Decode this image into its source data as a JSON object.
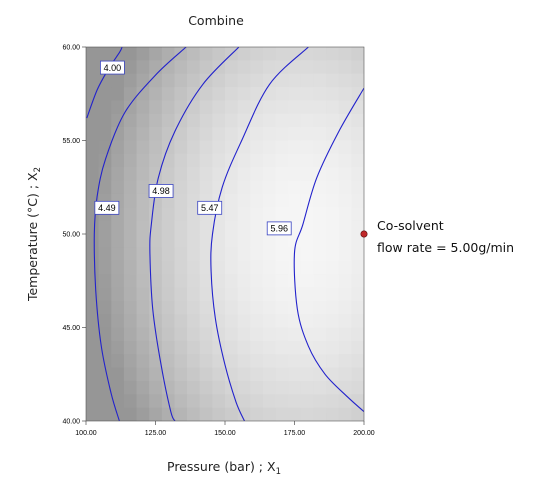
{
  "chart_data": {
    "type": "contour",
    "title": "Combine",
    "xlabel": "Pressure (bar) ; X",
    "xlabel_sub": "1",
    "ylabel": "Temperature (°C) ; X",
    "ylabel_sub": "2",
    "xlim": [
      100,
      200
    ],
    "ylim": [
      40,
      60
    ],
    "x_ticks": [
      "100.00",
      "125.00",
      "150.00",
      "175.00",
      "200.00"
    ],
    "y_ticks": [
      "40.00",
      "45.00",
      "50.00",
      "55.00",
      "60.00"
    ],
    "contours": [
      {
        "level": "4.00",
        "points": [
          [
            100.3,
            56.2
          ],
          [
            104,
            57.7
          ],
          [
            108,
            58.8
          ],
          [
            112,
            59.7
          ],
          [
            113,
            60.0
          ]
        ],
        "label_pos": [
          109.5,
          58.9
        ]
      },
      {
        "level": "4.49",
        "points": [
          [
            136,
            60.0
          ],
          [
            125,
            58.5
          ],
          [
            114,
            56.5
          ],
          [
            107,
            54.0
          ],
          [
            104,
            52.0
          ],
          [
            103,
            50.0
          ],
          [
            103.5,
            47.0
          ],
          [
            105.5,
            44.0
          ],
          [
            109,
            41.5
          ],
          [
            112,
            40.0
          ]
        ],
        "label_pos": [
          107.5,
          51.4
        ]
      },
      {
        "level": "4.98",
        "points": [
          [
            155,
            60.0
          ],
          [
            142,
            58.0
          ],
          [
            132,
            55.5
          ],
          [
            126,
            53.0
          ],
          [
            123.5,
            50.5
          ],
          [
            123,
            49.0
          ],
          [
            124,
            46.0
          ],
          [
            127,
            43.0
          ],
          [
            130.5,
            40.5
          ],
          [
            132,
            40.0
          ]
        ],
        "label_pos": [
          127,
          52.3
        ]
      },
      {
        "level": "5.47",
        "points": [
          [
            180,
            60.0
          ],
          [
            166,
            58.0
          ],
          [
            156,
            55.0
          ],
          [
            149,
            52.5
          ],
          [
            145.5,
            50.0
          ],
          [
            145,
            48.0
          ],
          [
            146.5,
            45.5
          ],
          [
            150,
            43.0
          ],
          [
            154,
            41.0
          ],
          [
            157,
            40.0
          ]
        ],
        "label_pos": [
          144.5,
          51.4
        ]
      },
      {
        "level": "5.96",
        "points": [
          [
            200,
            57.8
          ],
          [
            191,
            55.5
          ],
          [
            183,
            53.0
          ],
          [
            178,
            50.5
          ],
          [
            175,
            49.0
          ],
          [
            176,
            46.0
          ],
          [
            180,
            44.0
          ],
          [
            186,
            42.5
          ],
          [
            194,
            41.3
          ],
          [
            200,
            40.5
          ]
        ],
        "label_pos": [
          169.5,
          50.3
        ]
      }
    ],
    "design_point": {
      "x": 200,
      "y": 50
    },
    "annotation": [
      "Co-solvent",
      "flow rate = 5.00g/min"
    ],
    "colors": {
      "contour": "#2222cc",
      "design_point": "#c0282a",
      "label_border": "#3a44c2"
    }
  }
}
